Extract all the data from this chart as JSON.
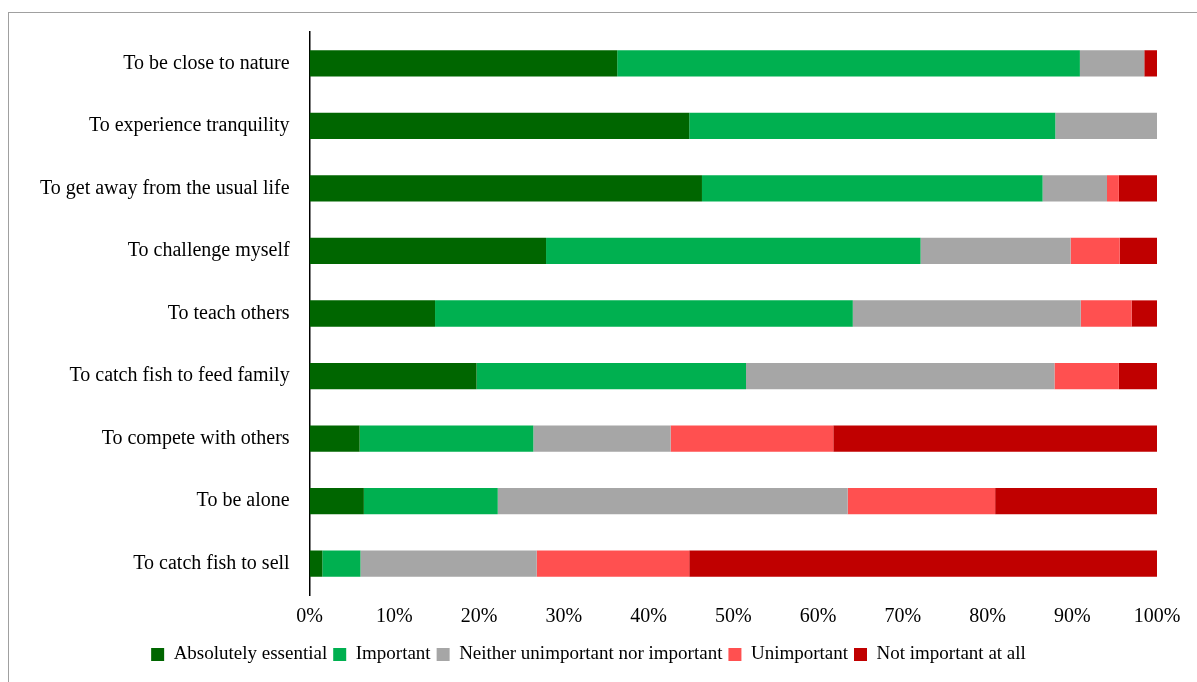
{
  "chart_data": {
    "type": "bar",
    "orientation": "horizontal",
    "stacked": true,
    "grid": false,
    "legend": "bottom",
    "categories": [
      "To be close to nature",
      "To experience tranquility",
      "To get away from the usual life",
      "To challenge myself",
      "To teach others",
      "To catch fish to feed family",
      "To compete with others",
      "To be alone",
      "To catch fish to sell"
    ],
    "series": [
      {
        "name": "Absolutely essential",
        "color": "#006600",
        "values": [
          36.3,
          44.8,
          46.3,
          27.9,
          14.8,
          19.7,
          5.9,
          6.4,
          1.5
        ]
      },
      {
        "name": "Important",
        "color": "#00b050",
        "values": [
          54.6,
          43.2,
          40.2,
          44.2,
          49.3,
          31.8,
          20.5,
          15.8,
          4.5
        ]
      },
      {
        "name": "Neither unimportant nor important",
        "color": "#a6a6a6",
        "values": [
          7.6,
          12,
          7.6,
          17.7,
          26.9,
          36.4,
          16.2,
          41.3,
          20.8
        ]
      },
      {
        "name": "Unimportant",
        "color": "#ff5050",
        "values": [
          0,
          0,
          1.4,
          5.8,
          6,
          7.6,
          19.2,
          17.4,
          18
        ]
      },
      {
        "name": "Not important at all",
        "color": "#c00000",
        "values": [
          1.5,
          0,
          4.5,
          4.4,
          3,
          4.5,
          38.2,
          19.1,
          55.2
        ]
      }
    ],
    "xlim": [
      0,
      100
    ],
    "xticks": [
      {
        "value": 0,
        "label": "0%"
      },
      {
        "value": 10,
        "label": "10%"
      },
      {
        "value": 20,
        "label": "20%"
      },
      {
        "value": 30,
        "label": "30%"
      },
      {
        "value": 40,
        "label": "40%"
      },
      {
        "value": 50,
        "label": "50%"
      },
      {
        "value": 60,
        "label": "60%"
      },
      {
        "value": 70,
        "label": "70%"
      },
      {
        "value": 80,
        "label": "80%"
      },
      {
        "value": 90,
        "label": "90%"
      },
      {
        "value": 100,
        "label": "100%"
      }
    ]
  }
}
